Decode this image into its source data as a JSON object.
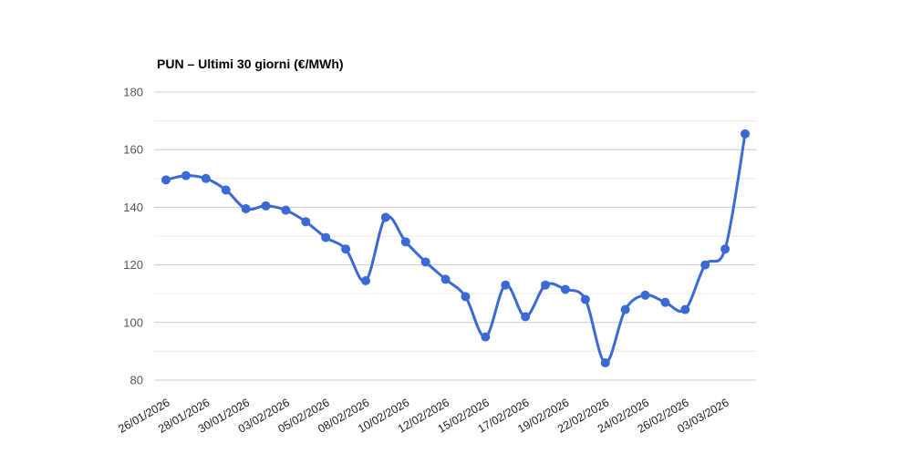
{
  "chart_data": {
    "type": "line",
    "title": "PUN – Ultimi 30 giorni (€/MWh)",
    "x_tick_labels": [
      "26/01/2026",
      "28/01/2026",
      "30/01/2026",
      "03/02/2026",
      "05/02/2026",
      "08/02/2026",
      "10/02/2026",
      "12/02/2026",
      "15/02/2026",
      "17/02/2026",
      "19/02/2026",
      "22/02/2026",
      "24/02/2026",
      "26/02/2026",
      "03/03/2026"
    ],
    "label_every_n_points": 2,
    "values": [
      149.5,
      151,
      150,
      146,
      139.5,
      140.5,
      139,
      135,
      129.5,
      125.5,
      114.5,
      136.5,
      128,
      121,
      115,
      109,
      95,
      113,
      102,
      113,
      111.5,
      108,
      86,
      104.5,
      109.5,
      107,
      104.5,
      120,
      125.5,
      165.5
    ],
    "ylabel": "",
    "xlabel": "",
    "ylim": [
      80,
      180
    ],
    "y_major_ticks": [
      180,
      160,
      140,
      120,
      100,
      80
    ],
    "y_minor_ticks": [
      170,
      150,
      130,
      110,
      90
    ],
    "grid": "on",
    "legend": "none",
    "x_label_rotation_deg": -30,
    "colors": {
      "line": "#3B6AD4",
      "grid_major": "#cccccc",
      "grid_minor": "#ebebeb",
      "y_tick_text": "#555555",
      "x_tick_text": "#222222",
      "title_text": "#000000",
      "background": "#ffffff"
    }
  }
}
